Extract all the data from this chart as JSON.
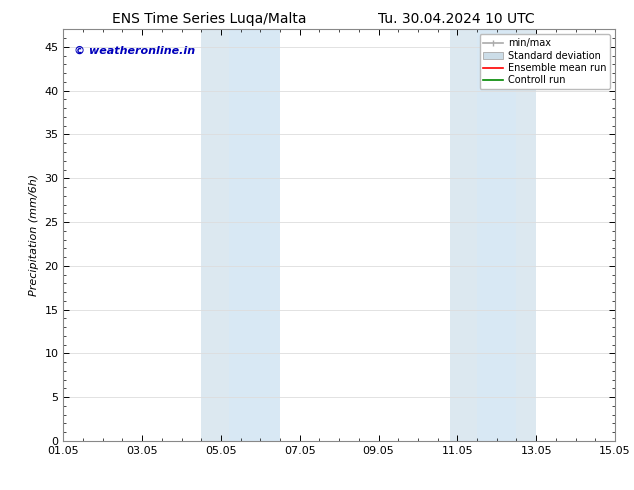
{
  "title_left": "ENS Time Series Luqa/Malta",
  "title_right": "Tu. 30.04.2024 10 UTC",
  "ylabel": "Precipitation (mm/6h)",
  "ylim": [
    0,
    47
  ],
  "yticks": [
    0,
    5,
    10,
    15,
    20,
    25,
    30,
    35,
    40,
    45
  ],
  "xtick_labels": [
    "01.05",
    "03.05",
    "05.05",
    "07.05",
    "09.05",
    "11.05",
    "13.05",
    "15.05"
  ],
  "xtick_positions": [
    0,
    2,
    4,
    6,
    8,
    10,
    12,
    14
  ],
  "xlim": [
    0,
    14
  ],
  "shaded_regions": [
    {
      "xstart": 3.5,
      "xend": 4.2,
      "color": "#dce8f0"
    },
    {
      "xstart": 4.2,
      "xend": 5.5,
      "color": "#d8e8f4"
    },
    {
      "xstart": 9.8,
      "xend": 10.5,
      "color": "#dce8f0"
    },
    {
      "xstart": 10.5,
      "xend": 11.5,
      "color": "#d8e8f4"
    },
    {
      "xstart": 11.5,
      "xend": 12.0,
      "color": "#dce8f0"
    }
  ],
  "watermark_text": "© weatheronline.in",
  "watermark_color": "#0000bb",
  "legend_labels": [
    "min/max",
    "Standard deviation",
    "Ensemble mean run",
    "Controll run"
  ],
  "legend_line_color": "#aaaaaa",
  "legend_std_color": "#ccdde8",
  "legend_ens_color": "#ff0000",
  "legend_ctrl_color": "#008800",
  "background_color": "#ffffff",
  "plot_bg_color": "#ffffff",
  "grid_color": "#dddddd",
  "spine_color": "#888888",
  "title_fontsize": 10,
  "axis_label_fontsize": 8,
  "tick_fontsize": 8,
  "watermark_fontsize": 8,
  "legend_fontsize": 7
}
